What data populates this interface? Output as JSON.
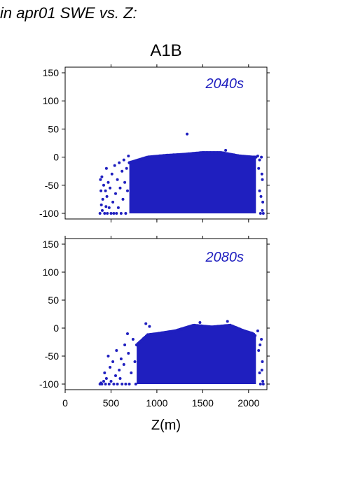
{
  "header": {
    "title": "in apr01 SWE vs. Z:"
  },
  "colors": {
    "series": "#1f1fbf",
    "axis": "#000000"
  },
  "chart_data": [
    {
      "type": "scatter",
      "title": "A1B",
      "annotation": "2040s",
      "xlabel": "",
      "ylabel": "",
      "xlim": [
        0,
        2200
      ],
      "ylim": [
        -110,
        160
      ],
      "y_ticks": [
        -100,
        -50,
        0,
        50,
        100,
        150
      ],
      "x_ticks": [
        500,
        1000,
        1500,
        2000
      ],
      "x_tick_labels_shown": false,
      "grid": false,
      "bulk": {
        "x_start": 700,
        "x_end": 2080,
        "y_bottom": -100,
        "y_top_profile": [
          [
            700,
            -10
          ],
          [
            900,
            0
          ],
          [
            1100,
            3
          ],
          [
            1300,
            5
          ],
          [
            1500,
            8
          ],
          [
            1700,
            8
          ],
          [
            1900,
            2
          ],
          [
            2050,
            0
          ],
          [
            2080,
            0
          ]
        ]
      },
      "points": [
        [
          380,
          -100
        ],
        [
          385,
          -40
        ],
        [
          390,
          -60
        ],
        [
          395,
          -85
        ],
        [
          400,
          -35
        ],
        [
          405,
          -95
        ],
        [
          410,
          -75
        ],
        [
          420,
          -50
        ],
        [
          430,
          -100
        ],
        [
          440,
          -60
        ],
        [
          445,
          -88
        ],
        [
          450,
          -20
        ],
        [
          455,
          -70
        ],
        [
          460,
          -100
        ],
        [
          470,
          -45
        ],
        [
          480,
          -90
        ],
        [
          490,
          -55
        ],
        [
          500,
          -100
        ],
        [
          510,
          -30
        ],
        [
          520,
          -80
        ],
        [
          530,
          -100
        ],
        [
          540,
          -15
        ],
        [
          550,
          -65
        ],
        [
          560,
          -100
        ],
        [
          570,
          -40
        ],
        [
          580,
          -90
        ],
        [
          590,
          -10
        ],
        [
          600,
          -55
        ],
        [
          610,
          -100
        ],
        [
          620,
          -25
        ],
        [
          630,
          -75
        ],
        [
          640,
          -5
        ],
        [
          650,
          -45
        ],
        [
          660,
          -100
        ],
        [
          670,
          -20
        ],
        [
          680,
          -60
        ],
        [
          690,
          2
        ],
        [
          1330,
          41
        ],
        [
          1480,
          8
        ],
        [
          1750,
          12
        ],
        [
          2100,
          2
        ],
        [
          2110,
          -20
        ],
        [
          2120,
          -60
        ],
        [
          2130,
          -100
        ],
        [
          2140,
          0
        ],
        [
          2150,
          -40
        ],
        [
          2155,
          -80
        ],
        [
          2160,
          -100
        ],
        [
          2120,
          -5
        ],
        [
          2135,
          -70
        ],
        [
          2145,
          -30
        ],
        [
          2150,
          -95
        ]
      ]
    },
    {
      "type": "scatter",
      "title": "",
      "annotation": "2080s",
      "xlabel": "Z(m)",
      "ylabel": "",
      "xlim": [
        0,
        2200
      ],
      "ylim": [
        -110,
        160
      ],
      "y_ticks": [
        -100,
        -50,
        0,
        50,
        100,
        150
      ],
      "x_ticks": [
        0,
        500,
        1000,
        1500,
        2000
      ],
      "x_tick_labels_shown": true,
      "grid": false,
      "bulk": {
        "x_start": 780,
        "x_end": 2080,
        "y_bottom": -100,
        "y_top_profile": [
          [
            780,
            -30
          ],
          [
            900,
            -12
          ],
          [
            1000,
            -10
          ],
          [
            1200,
            -5
          ],
          [
            1400,
            5
          ],
          [
            1600,
            2
          ],
          [
            1800,
            5
          ],
          [
            1950,
            -5
          ],
          [
            2050,
            -10
          ],
          [
            2080,
            -15
          ]
        ]
      },
      "points": [
        [
          380,
          -100
        ],
        [
          390,
          -98
        ],
        [
          400,
          -100
        ],
        [
          420,
          -95
        ],
        [
          430,
          -80
        ],
        [
          440,
          -100
        ],
        [
          450,
          -90
        ],
        [
          470,
          -50
        ],
        [
          480,
          -100
        ],
        [
          490,
          -70
        ],
        [
          500,
          -95
        ],
        [
          520,
          -60
        ],
        [
          530,
          -100
        ],
        [
          550,
          -85
        ],
        [
          560,
          -40
        ],
        [
          570,
          -100
        ],
        [
          590,
          -75
        ],
        [
          600,
          -90
        ],
        [
          610,
          -55
        ],
        [
          620,
          -100
        ],
        [
          640,
          -65
        ],
        [
          650,
          -30
        ],
        [
          660,
          -100
        ],
        [
          680,
          -10
        ],
        [
          690,
          -45
        ],
        [
          700,
          -100
        ],
        [
          720,
          -80
        ],
        [
          740,
          -20
        ],
        [
          760,
          -60
        ],
        [
          770,
          -100
        ],
        [
          880,
          8
        ],
        [
          920,
          3
        ],
        [
          1470,
          10
        ],
        [
          1770,
          12
        ],
        [
          2100,
          -5
        ],
        [
          2110,
          -40
        ],
        [
          2120,
          -80
        ],
        [
          2130,
          -100
        ],
        [
          2140,
          -20
        ],
        [
          2150,
          -60
        ],
        [
          2155,
          -95
        ],
        [
          2160,
          -100
        ],
        [
          2125,
          -30
        ],
        [
          2145,
          -75
        ]
      ]
    }
  ]
}
